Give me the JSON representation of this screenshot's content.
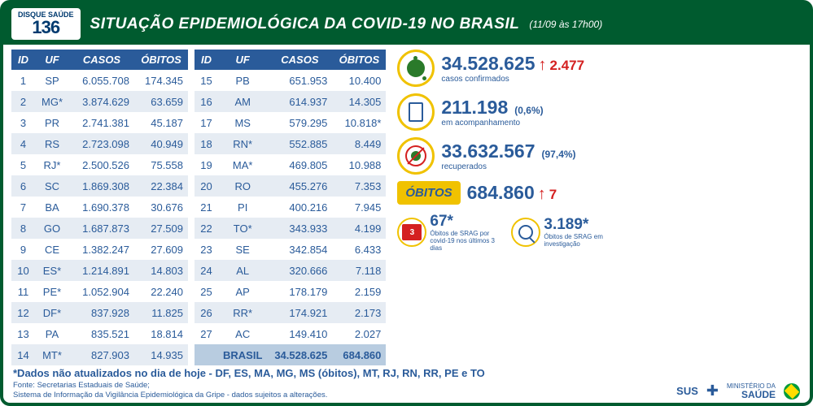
{
  "header": {
    "disque_top": "DISQUE",
    "disque_mid": "SAÚDE",
    "disque_num": "136",
    "title": "SITUAÇÃO EPIDEMIOLÓGICA DA COVID-19 NO BRASIL",
    "timestamp": "(11/09 às 17h00)"
  },
  "columns": [
    "ID",
    "UF",
    "CASOS",
    "ÓBITOS"
  ],
  "rows_left": [
    {
      "id": "1",
      "uf": "SP",
      "casos": "6.055.708",
      "obitos": "174.345"
    },
    {
      "id": "2",
      "uf": "MG*",
      "casos": "3.874.629",
      "obitos": "63.659"
    },
    {
      "id": "3",
      "uf": "PR",
      "casos": "2.741.381",
      "obitos": "45.187"
    },
    {
      "id": "4",
      "uf": "RS",
      "casos": "2.723.098",
      "obitos": "40.949"
    },
    {
      "id": "5",
      "uf": "RJ*",
      "casos": "2.500.526",
      "obitos": "75.558"
    },
    {
      "id": "6",
      "uf": "SC",
      "casos": "1.869.308",
      "obitos": "22.384"
    },
    {
      "id": "7",
      "uf": "BA",
      "casos": "1.690.378",
      "obitos": "30.676"
    },
    {
      "id": "8",
      "uf": "GO",
      "casos": "1.687.873",
      "obitos": "27.509"
    },
    {
      "id": "9",
      "uf": "CE",
      "casos": "1.382.247",
      "obitos": "27.609"
    },
    {
      "id": "10",
      "uf": "ES*",
      "casos": "1.214.891",
      "obitos": "14.803"
    },
    {
      "id": "11",
      "uf": "PE*",
      "casos": "1.052.904",
      "obitos": "22.240"
    },
    {
      "id": "12",
      "uf": "DF*",
      "casos": "837.928",
      "obitos": "11.825"
    },
    {
      "id": "13",
      "uf": "PA",
      "casos": "835.521",
      "obitos": "18.814"
    },
    {
      "id": "14",
      "uf": "MT*",
      "casos": "827.903",
      "obitos": "14.935"
    }
  ],
  "rows_right": [
    {
      "id": "15",
      "uf": "PB",
      "casos": "651.953",
      "obitos": "10.400"
    },
    {
      "id": "16",
      "uf": "AM",
      "casos": "614.937",
      "obitos": "14.305"
    },
    {
      "id": "17",
      "uf": "MS",
      "casos": "579.295",
      "obitos": "10.818*"
    },
    {
      "id": "18",
      "uf": "RN*",
      "casos": "552.885",
      "obitos": "8.449"
    },
    {
      "id": "19",
      "uf": "MA*",
      "casos": "469.805",
      "obitos": "10.988"
    },
    {
      "id": "20",
      "uf": "RO",
      "casos": "455.276",
      "obitos": "7.353"
    },
    {
      "id": "21",
      "uf": "PI",
      "casos": "400.216",
      "obitos": "7.945"
    },
    {
      "id": "22",
      "uf": "TO*",
      "casos": "343.933",
      "obitos": "4.199"
    },
    {
      "id": "23",
      "uf": "SE",
      "casos": "342.854",
      "obitos": "6.433"
    },
    {
      "id": "24",
      "uf": "AL",
      "casos": "320.666",
      "obitos": "7.118"
    },
    {
      "id": "25",
      "uf": "AP",
      "casos": "178.179",
      "obitos": "2.159"
    },
    {
      "id": "26",
      "uf": "RR*",
      "casos": "174.921",
      "obitos": "2.173"
    },
    {
      "id": "27",
      "uf": "AC",
      "casos": "149.410",
      "obitos": "2.027"
    }
  ],
  "total": {
    "label": "BRASIL",
    "casos": "34.528.625",
    "obitos": "684.860"
  },
  "stats": {
    "confirmados": {
      "value": "34.528.625",
      "delta": "2.477",
      "label": "casos confirmados"
    },
    "acompanhamento": {
      "value": "211.198",
      "pct": "(0,6%)",
      "label": "em acompanhamento"
    },
    "recuperados": {
      "value": "33.632.567",
      "pct": "(97,4%)",
      "label": "recuperados"
    },
    "obitos": {
      "title": "ÓBITOS",
      "value": "684.860",
      "delta": "7"
    },
    "srag3d": {
      "value": "67",
      "star": "*",
      "label": "Óbitos de SRAG por covid-19 nos últimos 3 dias"
    },
    "srag_inv": {
      "value": "3.189",
      "star": "*",
      "label": "Óbitos de SRAG em investigação"
    }
  },
  "footnote": "*Dados não atualizados no dia de hoje - DF, ES, MA, MG, MS (óbitos), MT, RJ, RN, RR, PE e TO",
  "sources": {
    "l1": "Fonte: Secretarias Estaduais de Saúde;",
    "l2": "Sistema de Informação da Vigilância Epidemiológica da Gripe - dados sujeitos a alterações."
  },
  "logos": {
    "sus": "SUS",
    "ministerio1": "MINISTÉRIO DA",
    "ministerio2": "SAÚDE"
  }
}
